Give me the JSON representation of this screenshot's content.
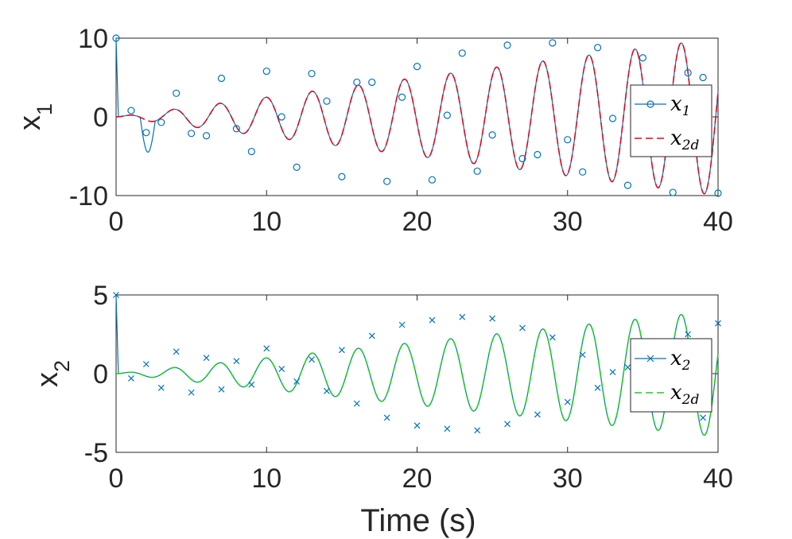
{
  "chart_data": [
    {
      "type": "line",
      "ylabel": "x",
      "ylabel_sub": "1",
      "xlim": [
        0,
        40
      ],
      "ylim": [
        -10,
        10
      ],
      "xticks": [
        "0",
        "10",
        "20",
        "30",
        "40"
      ],
      "yticks": [
        "-10",
        "0",
        "10"
      ],
      "grid": false,
      "legend_position": "right",
      "series": [
        {
          "legend_main": "x",
          "legend_sub": "1",
          "color": "#0072BD",
          "style": "solid",
          "marker": "circle",
          "markers": [
            [
              0,
              10
            ],
            [
              1,
              0.8
            ],
            [
              2,
              -2
            ],
            [
              3,
              -0.7
            ],
            [
              4,
              3
            ],
            [
              5,
              -2.1
            ],
            [
              6,
              -2.4
            ],
            [
              7,
              4.9
            ],
            [
              8,
              -1.5
            ],
            [
              9,
              -4.4
            ],
            [
              10,
              5.8
            ],
            [
              11,
              0
            ],
            [
              12,
              -6.4
            ],
            [
              13,
              5.5
            ],
            [
              14,
              2
            ],
            [
              15,
              -7.6
            ],
            [
              16,
              4.4
            ],
            [
              17,
              4.4
            ],
            [
              18,
              -8.2
            ],
            [
              19,
              2.5
            ],
            [
              20,
              6.4
            ],
            [
              21,
              -8
            ],
            [
              22,
              0.2
            ],
            [
              23,
              8.1
            ],
            [
              24,
              -6.9
            ],
            [
              25,
              -2.3
            ],
            [
              26,
              9.1
            ],
            [
              27,
              -5.3
            ],
            [
              28,
              -4.8
            ],
            [
              29,
              9.4
            ],
            [
              30,
              -2.9
            ],
            [
              31,
              -7
            ],
            [
              32,
              8.8
            ],
            [
              33,
              -0.2
            ],
            [
              34,
              -8.7
            ],
            [
              35,
              7.5
            ],
            [
              36,
              2.5
            ],
            [
              37,
              -9.6
            ],
            [
              38,
              5.6
            ],
            [
              39,
              5
            ],
            [
              40,
              -9.7
            ]
          ]
        },
        {
          "legend_main": "x",
          "legend_sub": "2d",
          "color": "#E3061C",
          "style": "dashed",
          "marker": "none"
        }
      ]
    },
    {
      "type": "line",
      "ylabel": "x",
      "ylabel_sub": "2",
      "xlabel": "Time (s)",
      "xlim": [
        0,
        40
      ],
      "ylim": [
        -5,
        5
      ],
      "xticks": [
        "0",
        "10",
        "20",
        "30",
        "40"
      ],
      "yticks": [
        "-5",
        "0",
        "5"
      ],
      "grid": false,
      "legend_position": "right",
      "series": [
        {
          "legend_main": "x",
          "legend_sub": "2",
          "color": "#0072BD",
          "style": "solid",
          "marker": "x",
          "markers": [
            [
              0,
              5
            ],
            [
              1,
              -0.3
            ],
            [
              2,
              0.6
            ],
            [
              3,
              -0.9
            ],
            [
              4,
              1.4
            ],
            [
              5,
              -1.2
            ],
            [
              6,
              1
            ],
            [
              7,
              -1
            ],
            [
              8,
              0.8
            ],
            [
              9,
              -0.7
            ],
            [
              10,
              1.6
            ],
            [
              11,
              0.3
            ],
            [
              12,
              -0.5
            ],
            [
              13,
              0.9
            ],
            [
              14,
              -1.1
            ],
            [
              15,
              1.5
            ],
            [
              16,
              -1.9
            ],
            [
              17,
              2.4
            ],
            [
              18,
              -2.8
            ],
            [
              19,
              3.1
            ],
            [
              20,
              -3.3
            ],
            [
              21,
              3.4
            ],
            [
              22,
              -3.5
            ],
            [
              23,
              3.6
            ],
            [
              24,
              -3.6
            ],
            [
              25,
              3.5
            ],
            [
              26,
              -3.2
            ],
            [
              27,
              2.9
            ],
            [
              28,
              -2.6
            ],
            [
              29,
              2.3
            ],
            [
              30,
              -1.8
            ],
            [
              31,
              1.2
            ],
            [
              32,
              -0.9
            ],
            [
              33,
              0.1
            ],
            [
              34,
              0.4
            ],
            [
              35,
              -0.8
            ],
            [
              36,
              1.4
            ],
            [
              37,
              -2
            ],
            [
              38,
              2.5
            ],
            [
              39,
              -2.8
            ],
            [
              40,
              3.2
            ]
          ]
        },
        {
          "legend_main": "x",
          "legend_sub": "2d",
          "color": "#19D21A",
          "style": "dashed",
          "marker": "none"
        }
      ]
    }
  ]
}
